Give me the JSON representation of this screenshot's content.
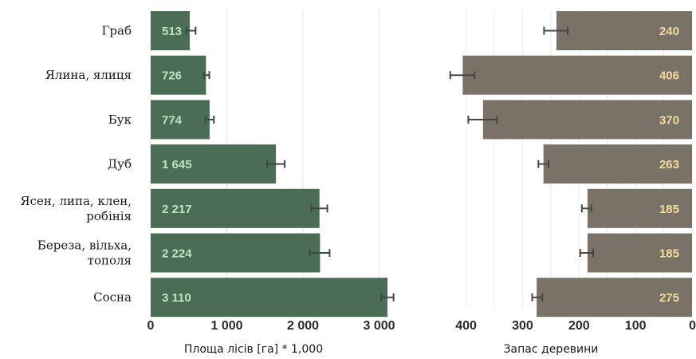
{
  "chart_data": [
    {
      "type": "bar",
      "orientation": "horizontal",
      "categories": [
        "Граб",
        "Ялина, ялиця",
        "Бук",
        "Дуб",
        "Ясен, липа, клен, робінія",
        "Береза, вільха, тополя",
        "Сосна"
      ],
      "category_lines": [
        [
          "Граб"
        ],
        [
          "Ялина, ялиця"
        ],
        [
          "Бук"
        ],
        [
          "Дуб"
        ],
        [
          "Ясен, липа, клен,",
          "робінія"
        ],
        [
          "Береза, вільха,",
          "тополя"
        ],
        [
          "Сосна"
        ]
      ],
      "values": [
        513,
        726,
        774,
        1645,
        2217,
        2224,
        3110
      ],
      "value_labels": [
        "513",
        "726",
        "774",
        "1 645",
        "2 217",
        "2 224",
        "3 110"
      ],
      "error_bars": [
        [
          470,
          590
        ],
        [
          700,
          770
        ],
        [
          720,
          830
        ],
        [
          1530,
          1760
        ],
        [
          2110,
          2320
        ],
        [
          2090,
          2350
        ],
        [
          3030,
          3190
        ]
      ],
      "xlim": [
        0,
        3300
      ],
      "xticks": [
        0,
        1000,
        2000,
        3000
      ],
      "xtick_labels": [
        "0",
        "1 000",
        "2 000",
        "3 000"
      ],
      "xlabel": "Площа лісів [га] * 1,000",
      "grid": true,
      "bar_color": "#4b6d55",
      "label_color": "#bfe3c2"
    },
    {
      "type": "bar",
      "orientation": "horizontal",
      "x_reversed": true,
      "categories": [
        "Граб",
        "Ялина, ялиця",
        "Бук",
        "Дуб",
        "Ясен, липа, клен, робінія",
        "Береза, вільха, тополя",
        "Сосна"
      ],
      "values": [
        240,
        406,
        370,
        263,
        185,
        185,
        275
      ],
      "value_labels": [
        "240",
        "406",
        "370",
        "263",
        "185",
        "185",
        "275"
      ],
      "error_bars": [
        [
          220,
          262
        ],
        [
          385,
          428
        ],
        [
          345,
          396
        ],
        [
          254,
          272
        ],
        [
          178,
          195
        ],
        [
          175,
          198
        ],
        [
          265,
          283
        ]
      ],
      "xlim": [
        0,
        430
      ],
      "xticks": [
        400,
        300,
        200,
        100,
        0
      ],
      "xtick_labels": [
        "400",
        "300",
        "200",
        "100",
        "0"
      ],
      "xlabel": "Запас деревини",
      "grid": true,
      "bar_color": "#7a7266",
      "label_color": "#f2dca0"
    }
  ]
}
